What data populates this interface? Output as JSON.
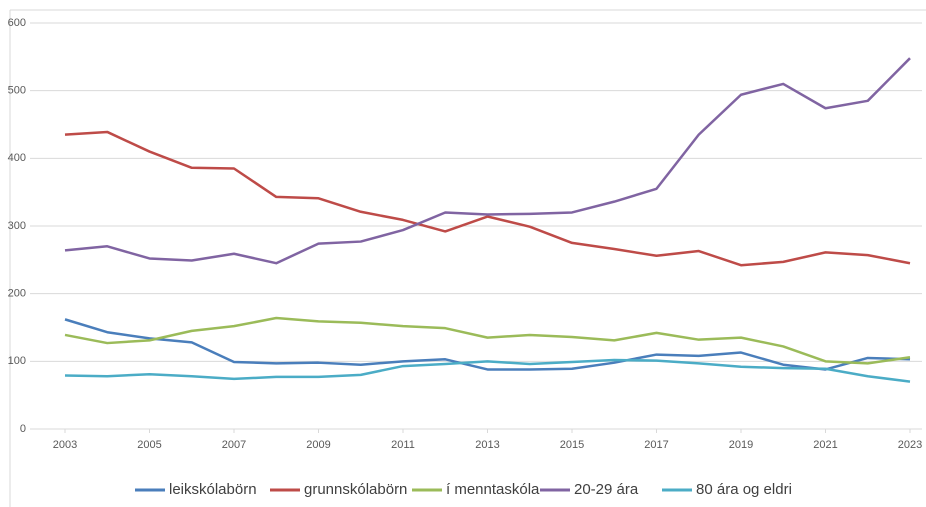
{
  "chart_data": {
    "type": "line",
    "x": [
      2003,
      2004,
      2005,
      2006,
      2007,
      2008,
      2009,
      2010,
      2011,
      2012,
      2013,
      2014,
      2015,
      2016,
      2017,
      2018,
      2019,
      2020,
      2021,
      2022,
      2023
    ],
    "xlim": [
      2003,
      2023
    ],
    "xticks": [
      2003,
      2005,
      2007,
      2009,
      2011,
      2013,
      2015,
      2017,
      2019,
      2021,
      2023
    ],
    "ylim": [
      0,
      600
    ],
    "yticks": [
      0,
      100,
      200,
      300,
      400,
      500,
      600
    ],
    "grid": true,
    "legend": "bottom",
    "series": [
      {
        "name": "leikskólabörn",
        "color": "#4a7ebb",
        "values": [
          162,
          143,
          134,
          128,
          99,
          97,
          98,
          95,
          100,
          103,
          88,
          88,
          89,
          98,
          110,
          108,
          113,
          95,
          88,
          105,
          103
        ]
      },
      {
        "name": "grunnskólabörn",
        "color": "#be4b48",
        "values": [
          435,
          439,
          410,
          386,
          385,
          343,
          341,
          321,
          309,
          292,
          314,
          299,
          275,
          266,
          256,
          263,
          242,
          247,
          261,
          257,
          245
        ]
      },
      {
        "name": "í menntaskóla",
        "color": "#9bbb59",
        "values": [
          139,
          127,
          131,
          145,
          152,
          164,
          159,
          157,
          152,
          149,
          135,
          139,
          136,
          131,
          142,
          132,
          135,
          122,
          100,
          97,
          106
        ]
      },
      {
        "name": "20-29 ára",
        "color": "#8064a2",
        "values": [
          264,
          270,
          252,
          249,
          259,
          245,
          274,
          277,
          294,
          320,
          317,
          318,
          320,
          336,
          355,
          435,
          494,
          510,
          474,
          485,
          548
        ]
      },
      {
        "name": "80 ára og eldri",
        "color": "#4bacc6",
        "values": [
          79,
          78,
          81,
          78,
          74,
          77,
          77,
          80,
          93,
          96,
          100,
          96,
          99,
          102,
          101,
          97,
          92,
          90,
          89,
          78,
          70
        ]
      }
    ]
  }
}
